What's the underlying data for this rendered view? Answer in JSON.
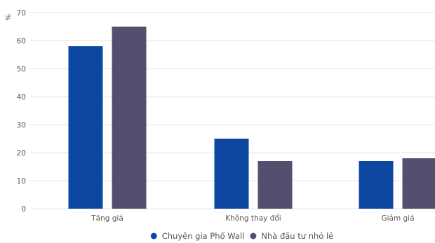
{
  "chart_data": {
    "type": "bar",
    "title": "",
    "xlabel": "",
    "ylabel": "%",
    "ylim": [
      0,
      70
    ],
    "yticks": [
      0,
      10,
      20,
      30,
      40,
      50,
      60,
      70
    ],
    "grid": true,
    "legend_position": "bottom",
    "categories": [
      "Tăng giá",
      "Không thay đổi",
      "Giảm giá"
    ],
    "series": [
      {
        "name": "Chuyên gia Phố Wall",
        "color": "#0d47a1",
        "values": [
          58,
          25,
          17
        ]
      },
      {
        "name": "Nhà đầu tư nhỏ lẻ",
        "color": "#534f6e",
        "values": [
          65,
          17,
          18
        ]
      }
    ]
  },
  "colors": {
    "gridline": "#e6e6e6",
    "axis_text": "#555555"
  }
}
